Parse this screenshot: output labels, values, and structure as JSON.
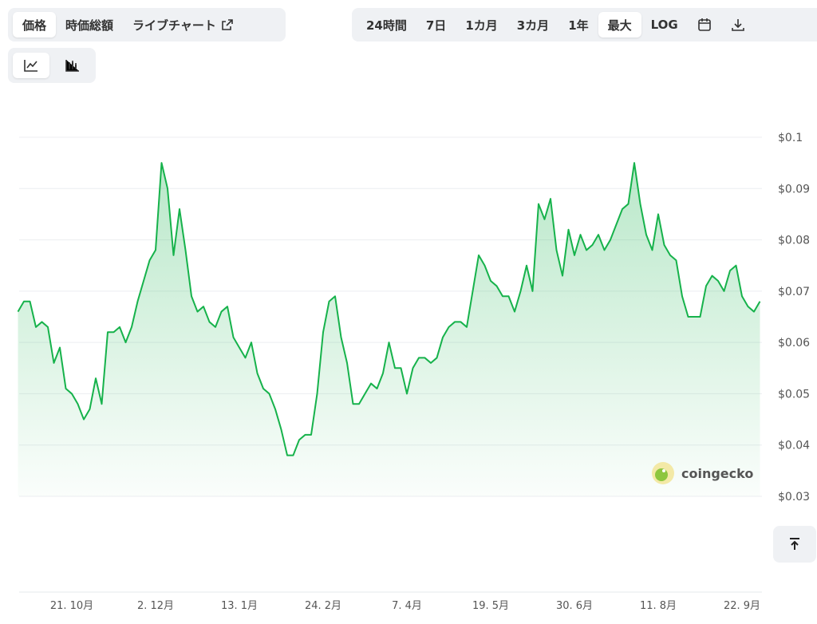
{
  "ui": {
    "tabs": [
      "価格",
      "時価総額",
      "ライブチャート"
    ],
    "ranges": [
      "24時間",
      "7日",
      "1カ月",
      "3カ月",
      "1年",
      "最大",
      "LOG"
    ],
    "watermark": "coingecko"
  },
  "chart_data": {
    "type": "line",
    "categories": [
      null,
      null,
      null,
      null,
      null,
      null,
      null,
      null,
      null,
      "21. 10月",
      null,
      null,
      null,
      null,
      null,
      null,
      null,
      null,
      null,
      null,
      null,
      null,
      null,
      "2. 12月",
      null,
      null,
      null,
      null,
      null,
      null,
      null,
      null,
      null,
      null,
      null,
      null,
      null,
      "13. 1月",
      null,
      null,
      null,
      null,
      null,
      null,
      null,
      null,
      null,
      null,
      null,
      null,
      null,
      "24. 2月",
      null,
      null,
      null,
      null,
      null,
      null,
      null,
      null,
      null,
      null,
      null,
      null,
      null,
      "7. 4月",
      null,
      null,
      null,
      null,
      null,
      null,
      null,
      null,
      null,
      null,
      null,
      null,
      null,
      "19. 5月",
      null,
      null,
      null,
      null,
      null,
      null,
      null,
      null,
      null,
      null,
      null,
      null,
      null,
      "30. 6月",
      null,
      null,
      null,
      null,
      null,
      null,
      null,
      null,
      null,
      null,
      null,
      null,
      null,
      "11. 8月",
      null,
      null,
      null,
      null,
      null,
      null,
      null,
      null,
      null,
      null,
      null,
      null,
      null,
      "22. 9月",
      null,
      null,
      null
    ],
    "series": [
      {
        "color": "#16b24b",
        "values": [
          0.066,
          0.068,
          0.068,
          0.063,
          0.064,
          0.063,
          0.056,
          0.059,
          0.051,
          0.05,
          0.048,
          0.045,
          0.047,
          0.053,
          0.048,
          0.062,
          0.062,
          0.063,
          0.06,
          0.063,
          0.068,
          0.072,
          0.076,
          0.078,
          0.095,
          0.09,
          0.077,
          0.086,
          0.078,
          0.069,
          0.066,
          0.067,
          0.064,
          0.063,
          0.066,
          0.067,
          0.061,
          0.059,
          0.057,
          0.06,
          0.054,
          0.051,
          0.05,
          0.047,
          0.043,
          0.038,
          0.038,
          0.041,
          0.042,
          0.042,
          0.05,
          0.062,
          0.068,
          0.069,
          0.061,
          0.056,
          0.048,
          0.048,
          0.05,
          0.052,
          0.051,
          0.054,
          0.06,
          0.055,
          0.055,
          0.05,
          0.055,
          0.057,
          0.057,
          0.056,
          0.057,
          0.061,
          0.063,
          0.064,
          0.064,
          0.063,
          0.07,
          0.077,
          0.075,
          0.072,
          0.071,
          0.069,
          0.069,
          0.066,
          0.07,
          0.075,
          0.07,
          0.087,
          0.084,
          0.088,
          0.078,
          0.073,
          0.082,
          0.077,
          0.081,
          0.078,
          0.079,
          0.081,
          0.078,
          0.08,
          0.083,
          0.086,
          0.087,
          0.095,
          0.087,
          0.081,
          0.078,
          0.085,
          0.079,
          0.077,
          0.076,
          0.069,
          0.065,
          0.065,
          0.065,
          0.071,
          0.073,
          0.072,
          0.07,
          0.074,
          0.075,
          0.069,
          0.067,
          0.066,
          0.068
        ]
      }
    ],
    "ylim": [
      0.03,
      0.1
    ],
    "yticks": [
      {
        "value": 0.03,
        "label": "$0.03"
      },
      {
        "value": 0.04,
        "label": "$0.04"
      },
      {
        "value": 0.05,
        "label": "$0.05"
      },
      {
        "value": 0.06,
        "label": "$0.06"
      },
      {
        "value": 0.07,
        "label": "$0.07"
      },
      {
        "value": 0.08,
        "label": "$0.08"
      },
      {
        "value": 0.09,
        "label": "$0.09"
      },
      {
        "value": 0.1,
        "label": "$0.1"
      }
    ],
    "grid": true
  }
}
